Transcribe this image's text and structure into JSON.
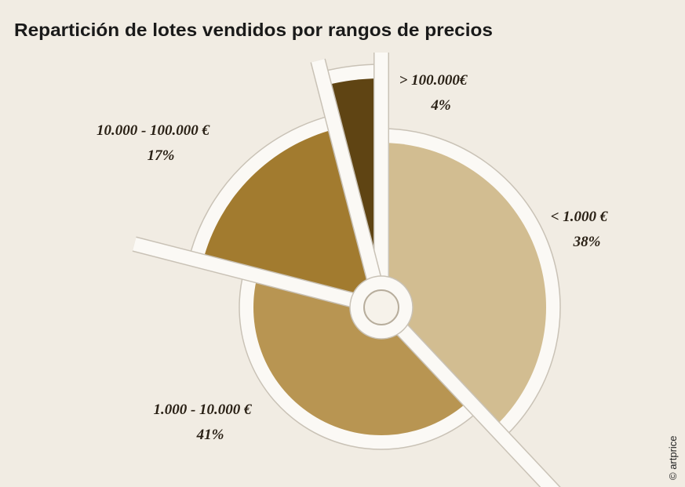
{
  "chart_data": {
    "type": "pie",
    "title": "Repartición de lotes vendidos por rangos de precios",
    "categories": [
      "< 1.000 €",
      "1.000 - 10.000 €",
      "10.000 - 100.000 €",
      "> 100.000€"
    ],
    "values": [
      38,
      41,
      17,
      4
    ],
    "value_labels": [
      "38%",
      "41%",
      "17%",
      "4%"
    ],
    "colors": [
      "#d2bd91",
      "#b89552",
      "#a27b2f",
      "#5f4413"
    ],
    "credit": "© artprice"
  }
}
